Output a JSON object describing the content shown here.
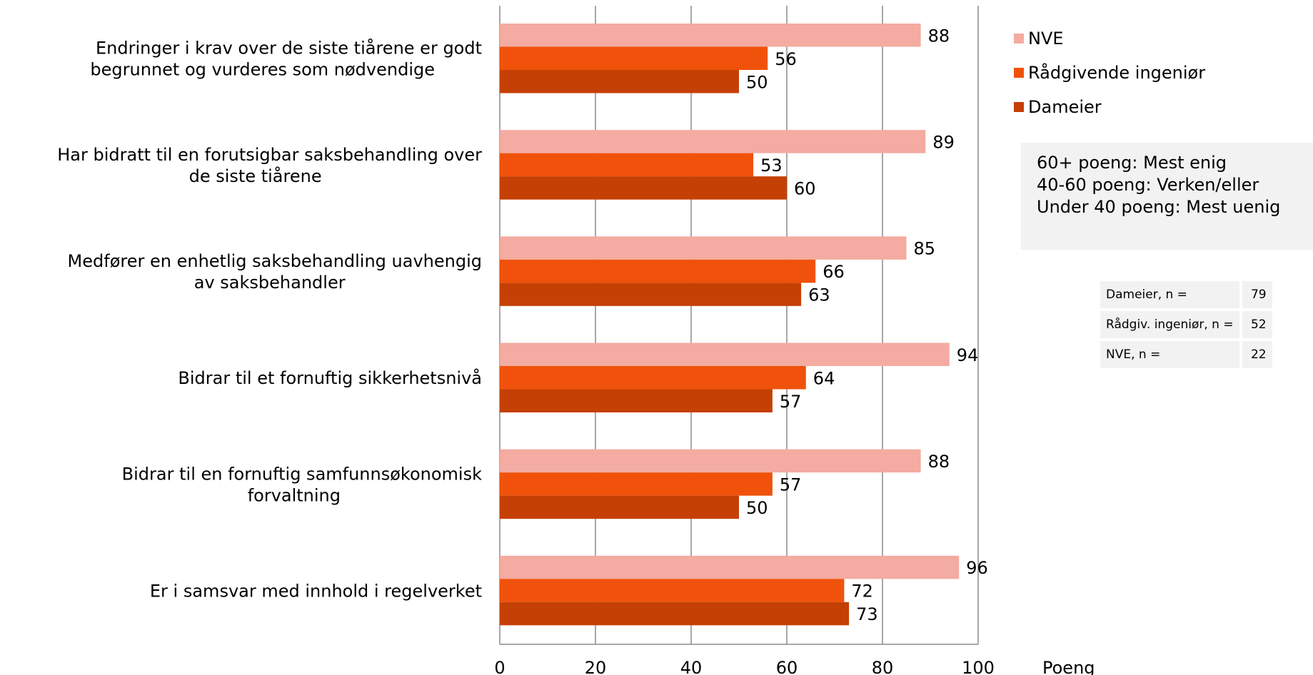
{
  "chart_data": {
    "type": "bar",
    "orientation": "horizontal",
    "categories": [
      [
        "Endringer i krav over de siste tiårene er godt",
        "begrunnet og vurderes som nødvendige"
      ],
      [
        "Har bidratt til en forutsigbar saksbehandling over",
        "de siste tiårene"
      ],
      [
        "Medfører en enhetlig saksbehandling uavhengig",
        "av saksbehandler"
      ],
      [
        "Bidrar til et fornuftig sikkerhetsnivå"
      ],
      [
        "Bidrar til en fornuftig samfunnsøkonomisk",
        "forvaltning"
      ],
      [
        "Er i samsvar med innhold i regelverket"
      ]
    ],
    "series": [
      {
        "name": "NVE",
        "color": "#f4aba1",
        "values": [
          88,
          89,
          85,
          94,
          88,
          96
        ]
      },
      {
        "name": "Rådgivende ingeniør",
        "color": "#f0520b",
        "values": [
          56,
          53,
          66,
          64,
          57,
          72
        ]
      },
      {
        "name": "Dameier",
        "color": "#c54004",
        "values": [
          50,
          60,
          63,
          57,
          50,
          73
        ]
      }
    ],
    "xlim": [
      0,
      100
    ],
    "xticks": [
      0,
      20,
      40,
      60,
      80,
      100
    ],
    "xlabel": "Poeng",
    "grid": true,
    "legend_position": "right"
  },
  "notes": [
    "60+ poeng: Mest enig",
    "40-60 poeng: Verken/eller",
    "Under 40 poeng: Mest uenig"
  ],
  "n_table": [
    {
      "label": "Dameier, n =",
      "value": "79"
    },
    {
      "label": "Rådgiv. ingeniør, n =",
      "value": "52"
    },
    {
      "label": "NVE, n =",
      "value": "22"
    }
  ]
}
